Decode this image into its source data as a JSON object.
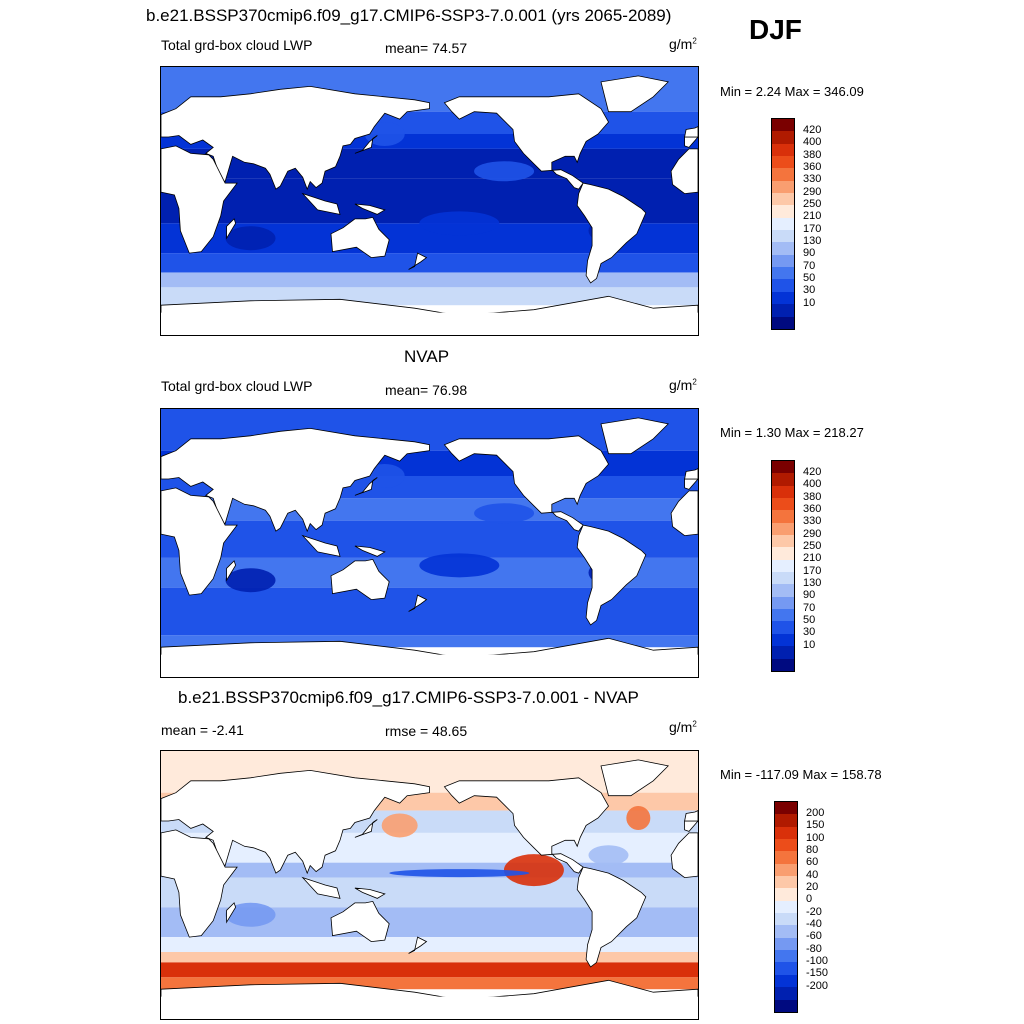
{
  "season": "DJF",
  "colors": {
    "lwp": [
      "#000a80",
      "#0020b0",
      "#0333d6",
      "#1f53e8",
      "#4376ef",
      "#7599f2",
      "#a3bcf5",
      "#c9dbf8",
      "#e5efff",
      "#ffeadb",
      "#fdc8a8",
      "#f99e70",
      "#f4743d",
      "#ec4d1a",
      "#d9300a",
      "#b01a00",
      "#7a0000"
    ],
    "diff": [
      "#000a80",
      "#0020b0",
      "#0333d6",
      "#1f53e8",
      "#4376ef",
      "#7599f2",
      "#a3bcf5",
      "#c9dbf8",
      "#e5efff",
      "#ffeadb",
      "#fdc8a8",
      "#f99e70",
      "#f4743d",
      "#ec4d1a",
      "#d9300a",
      "#b01a00",
      "#7a0000"
    ]
  },
  "panels": [
    {
      "title": "b.e21.BSSP370cmip6.f09_g17.CMIP6-SSP3-7.0.001 (yrs 2065-2089)",
      "left_label": "Total grd-box cloud LWP",
      "center_label": "mean=  74.57",
      "units": "g/m",
      "units_sup": "2",
      "minmax": "Min =   2.24 Max = 346.09",
      "colorbar": "lwp"
    },
    {
      "title": "NVAP",
      "left_label": "Total grd-box cloud LWP",
      "center_label": "mean=  76.98",
      "units": "g/m",
      "units_sup": "2",
      "minmax": "Min =   1.30 Max = 218.27",
      "colorbar": "lwp"
    },
    {
      "title": "b.e21.BSSP370cmip6.f09_g17.CMIP6-SSP3-7.0.001 - NVAP",
      "left_label": "mean =  -2.41",
      "center_label": "rmse =  48.65",
      "units": "g/m",
      "units_sup": "2",
      "minmax": "Min = -117.09 Max = 158.78",
      "colorbar": "diff"
    }
  ],
  "chart_data": [
    {
      "type": "heatmap",
      "title": "b.e21.BSSP370cmip6.f09_g17.CMIP6-SSP3-7.0.001 (yrs 2065-2089)",
      "variable": "Total grd-box cloud LWP",
      "units": "g/m2",
      "mean": 74.57,
      "min": 2.24,
      "max": 346.09,
      "colorbar_levels": [
        10,
        30,
        50,
        70,
        90,
        130,
        170,
        210,
        250,
        290,
        330,
        360,
        380,
        400,
        420
      ]
    },
    {
      "type": "heatmap",
      "title": "NVAP",
      "variable": "Total grd-box cloud LWP",
      "units": "g/m2",
      "mean": 76.98,
      "min": 1.3,
      "max": 218.27,
      "colorbar_levels": [
        10,
        30,
        50,
        70,
        90,
        130,
        170,
        210,
        250,
        290,
        330,
        360,
        380,
        400,
        420
      ]
    },
    {
      "type": "heatmap",
      "title": "b.e21.BSSP370cmip6.f09_g17.CMIP6-SSP3-7.0.001 - NVAP",
      "units": "g/m2",
      "mean": -2.41,
      "rmse": 48.65,
      "min": -117.09,
      "max": 158.78,
      "colorbar_levels": [
        -200,
        -150,
        -100,
        -80,
        -60,
        -40,
        -20,
        0,
        20,
        40,
        60,
        80,
        100,
        150,
        200
      ]
    }
  ],
  "colorbar_labels": {
    "lwp": [
      "420",
      "400",
      "380",
      "360",
      "330",
      "290",
      "250",
      "210",
      "170",
      "130",
      "90",
      "70",
      "50",
      "30",
      "10"
    ],
    "diff": [
      "200",
      "150",
      "100",
      "80",
      "60",
      "40",
      "20",
      "0",
      "-20",
      "-40",
      "-60",
      "-80",
      "-100",
      "-150",
      "-200"
    ]
  }
}
